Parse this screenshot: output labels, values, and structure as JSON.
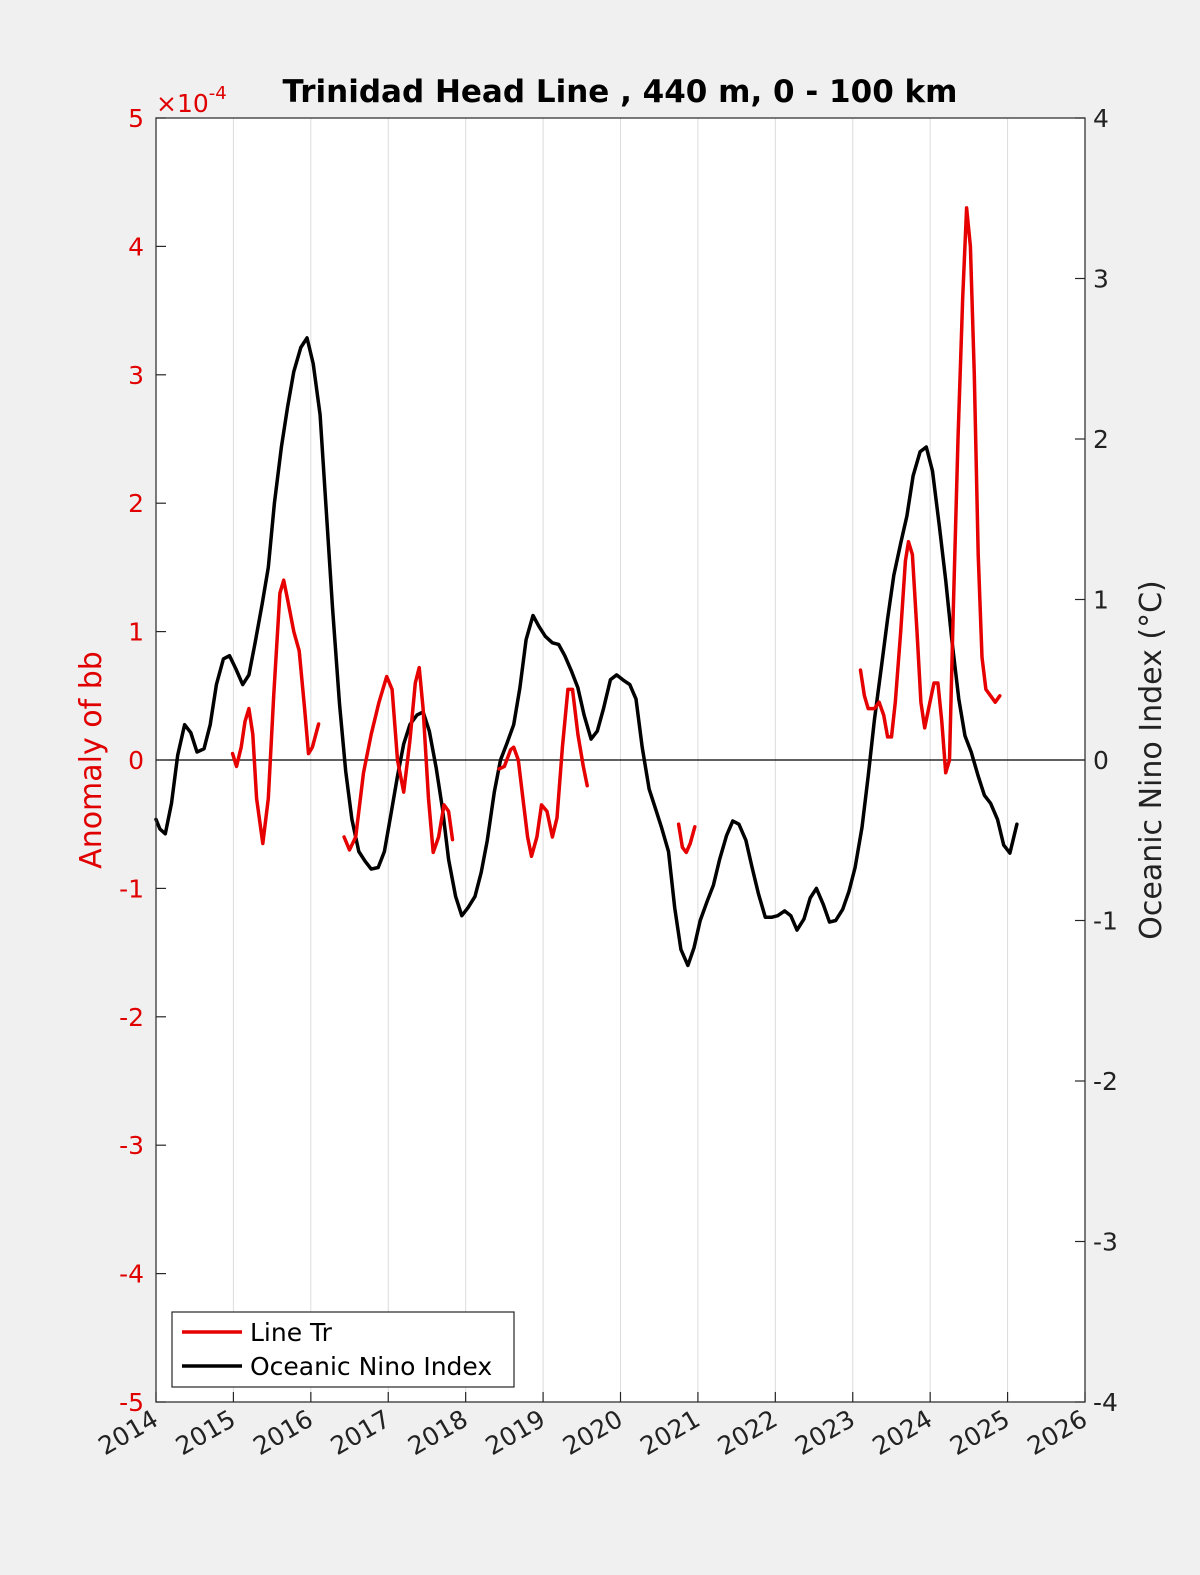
{
  "chart_data": {
    "type": "line",
    "title": "Trinidad Head Line , 440 m, 0 - 100 km",
    "ylabel_left": "Anomaly of bb",
    "ylabel_right": "Oceanic Nino Index (°C)",
    "left_exponent_base": "×10",
    "left_exponent_power": "-4",
    "xlim": [
      2014,
      2026
    ],
    "ylim_left": [
      -5,
      5
    ],
    "ylim_right": [
      -4,
      4
    ],
    "x_ticks": [
      2014,
      2015,
      2016,
      2017,
      2018,
      2019,
      2020,
      2021,
      2022,
      2023,
      2024,
      2025,
      2026
    ],
    "x_tick_labels": [
      "2014",
      "2015",
      "2016",
      "2017",
      "2018",
      "2019",
      "2020",
      "2021",
      "2022",
      "2023",
      "2024",
      "2025",
      "2026"
    ],
    "y_left_ticks": [
      -5,
      -4,
      -3,
      -2,
      -1,
      0,
      1,
      2,
      3,
      4,
      5
    ],
    "y_left_tick_labels": [
      "-5",
      "-4",
      "-3",
      "-2",
      "-1",
      "0",
      "1",
      "2",
      "3",
      "4",
      "5"
    ],
    "y_right_ticks": [
      -4,
      -3,
      -2,
      -1,
      0,
      1,
      2,
      3,
      4
    ],
    "y_right_tick_labels": [
      "-4",
      "-3",
      "-2",
      "-1",
      "0",
      "1",
      "2",
      "3",
      "4"
    ],
    "grid": "vertical",
    "legend_position": "bottom-left",
    "colors": {
      "line_tr": "#e60000",
      "oni": "#000000",
      "left_axis": "#e00000",
      "right_axis": "#222222"
    },
    "series": [
      {
        "name": "Line Tr",
        "axis": "left",
        "segments": [
          [
            [
              2014.99,
              0.05
            ],
            [
              2015.04,
              -0.05
            ],
            [
              2015.1,
              0.1
            ],
            [
              2015.15,
              0.3
            ],
            [
              2015.2,
              0.4
            ],
            [
              2015.25,
              0.2
            ],
            [
              2015.3,
              -0.3
            ],
            [
              2015.38,
              -0.65
            ],
            [
              2015.45,
              -0.3
            ],
            [
              2015.52,
              0.5
            ],
            [
              2015.6,
              1.3
            ],
            [
              2015.65,
              1.4
            ],
            [
              2015.7,
              1.25
            ],
            [
              2015.78,
              1.0
            ],
            [
              2015.85,
              0.85
            ],
            [
              2015.92,
              0.4
            ],
            [
              2015.97,
              0.05
            ],
            [
              2016.02,
              0.1
            ],
            [
              2016.1,
              0.28
            ]
          ],
          [
            [
              2016.43,
              -0.6
            ],
            [
              2016.5,
              -0.7
            ],
            [
              2016.58,
              -0.6
            ],
            [
              2016.68,
              -0.1
            ],
            [
              2016.78,
              0.2
            ],
            [
              2016.88,
              0.45
            ],
            [
              2016.98,
              0.65
            ],
            [
              2017.05,
              0.55
            ],
            [
              2017.12,
              0.0
            ],
            [
              2017.2,
              -0.25
            ],
            [
              2017.28,
              0.15
            ],
            [
              2017.35,
              0.6
            ],
            [
              2017.4,
              0.72
            ],
            [
              2017.45,
              0.4
            ],
            [
              2017.52,
              -0.3
            ],
            [
              2017.58,
              -0.72
            ],
            [
              2017.65,
              -0.6
            ],
            [
              2017.72,
              -0.35
            ],
            [
              2017.78,
              -0.4
            ],
            [
              2017.83,
              -0.62
            ]
          ],
          [
            [
              2018.43,
              -0.07
            ],
            [
              2018.5,
              -0.05
            ],
            [
              2018.58,
              0.08
            ],
            [
              2018.62,
              0.1
            ],
            [
              2018.68,
              0.0
            ],
            [
              2018.75,
              -0.35
            ],
            [
              2018.8,
              -0.6
            ],
            [
              2018.85,
              -0.75
            ],
            [
              2018.92,
              -0.6
            ],
            [
              2018.98,
              -0.35
            ],
            [
              2019.05,
              -0.4
            ],
            [
              2019.12,
              -0.6
            ],
            [
              2019.18,
              -0.45
            ],
            [
              2019.25,
              0.1
            ],
            [
              2019.32,
              0.55
            ],
            [
              2019.38,
              0.55
            ],
            [
              2019.45,
              0.2
            ],
            [
              2019.52,
              -0.05
            ],
            [
              2019.57,
              -0.2
            ]
          ],
          [
            [
              2020.75,
              -0.5
            ],
            [
              2020.8,
              -0.68
            ],
            [
              2020.85,
              -0.72
            ],
            [
              2020.9,
              -0.65
            ],
            [
              2020.96,
              -0.52
            ]
          ],
          [
            [
              2023.1,
              0.7
            ],
            [
              2023.15,
              0.5
            ],
            [
              2023.2,
              0.4
            ],
            [
              2023.28,
              0.4
            ],
            [
              2023.34,
              0.45
            ],
            [
              2023.4,
              0.35
            ],
            [
              2023.45,
              0.18
            ],
            [
              2023.5,
              0.18
            ],
            [
              2023.55,
              0.45
            ],
            [
              2023.62,
              1.0
            ],
            [
              2023.68,
              1.55
            ],
            [
              2023.72,
              1.7
            ],
            [
              2023.77,
              1.6
            ],
            [
              2023.83,
              1.0
            ],
            [
              2023.88,
              0.45
            ],
            [
              2023.93,
              0.25
            ],
            [
              2023.98,
              0.4
            ],
            [
              2024.05,
              0.6
            ],
            [
              2024.1,
              0.6
            ],
            [
              2024.15,
              0.3
            ],
            [
              2024.2,
              -0.1
            ],
            [
              2024.25,
              0.0
            ],
            [
              2024.3,
              1.2
            ],
            [
              2024.36,
              2.5
            ],
            [
              2024.42,
              3.6
            ],
            [
              2024.47,
              4.3
            ],
            [
              2024.52,
              4.0
            ],
            [
              2024.57,
              3.0
            ],
            [
              2024.62,
              1.6
            ],
            [
              2024.67,
              0.8
            ],
            [
              2024.72,
              0.55
            ],
            [
              2024.78,
              0.5
            ],
            [
              2024.84,
              0.45
            ],
            [
              2024.9,
              0.5
            ]
          ]
        ]
      },
      {
        "name": "Oceanic Nino Index",
        "axis": "right",
        "segments": [
          [
            [
              2014.0,
              -0.37
            ],
            [
              2014.05,
              -0.43
            ],
            [
              2014.12,
              -0.46
            ],
            [
              2014.2,
              -0.27
            ],
            [
              2014.28,
              0.03
            ],
            [
              2014.37,
              0.22
            ],
            [
              2014.45,
              0.17
            ],
            [
              2014.53,
              0.05
            ],
            [
              2014.62,
              0.07
            ],
            [
              2014.7,
              0.22
            ],
            [
              2014.78,
              0.47
            ],
            [
              2014.87,
              0.63
            ],
            [
              2014.95,
              0.65
            ],
            [
              2015.03,
              0.57
            ],
            [
              2015.12,
              0.47
            ],
            [
              2015.2,
              0.53
            ],
            [
              2015.28,
              0.73
            ],
            [
              2015.37,
              0.97
            ],
            [
              2015.45,
              1.2
            ],
            [
              2015.53,
              1.6
            ],
            [
              2015.62,
              1.95
            ],
            [
              2015.7,
              2.2
            ],
            [
              2015.78,
              2.42
            ],
            [
              2015.87,
              2.57
            ],
            [
              2015.95,
              2.63
            ],
            [
              2016.03,
              2.47
            ],
            [
              2016.12,
              2.15
            ],
            [
              2016.2,
              1.55
            ],
            [
              2016.28,
              0.95
            ],
            [
              2016.37,
              0.35
            ],
            [
              2016.45,
              -0.07
            ],
            [
              2016.53,
              -0.37
            ],
            [
              2016.62,
              -0.57
            ],
            [
              2016.7,
              -0.63
            ],
            [
              2016.78,
              -0.68
            ],
            [
              2016.87,
              -0.67
            ],
            [
              2016.95,
              -0.57
            ],
            [
              2017.03,
              -0.35
            ],
            [
              2017.12,
              -0.1
            ],
            [
              2017.2,
              0.1
            ],
            [
              2017.28,
              0.22
            ],
            [
              2017.37,
              0.28
            ],
            [
              2017.45,
              0.3
            ],
            [
              2017.53,
              0.18
            ],
            [
              2017.62,
              -0.05
            ],
            [
              2017.7,
              -0.3
            ],
            [
              2017.78,
              -0.62
            ],
            [
              2017.87,
              -0.85
            ],
            [
              2017.95,
              -0.97
            ],
            [
              2018.03,
              -0.92
            ],
            [
              2018.12,
              -0.85
            ],
            [
              2018.2,
              -0.7
            ],
            [
              2018.28,
              -0.5
            ],
            [
              2018.37,
              -0.2
            ],
            [
              2018.45,
              0.0
            ],
            [
              2018.53,
              0.1
            ],
            [
              2018.62,
              0.22
            ],
            [
              2018.7,
              0.45
            ],
            [
              2018.78,
              0.75
            ],
            [
              2018.87,
              0.9
            ],
            [
              2018.95,
              0.83
            ],
            [
              2019.03,
              0.77
            ],
            [
              2019.12,
              0.73
            ],
            [
              2019.2,
              0.72
            ],
            [
              2019.28,
              0.65
            ],
            [
              2019.37,
              0.55
            ],
            [
              2019.45,
              0.45
            ],
            [
              2019.53,
              0.28
            ],
            [
              2019.62,
              0.13
            ],
            [
              2019.7,
              0.18
            ],
            [
              2019.78,
              0.32
            ],
            [
              2019.87,
              0.5
            ],
            [
              2019.95,
              0.53
            ],
            [
              2020.03,
              0.5
            ],
            [
              2020.12,
              0.47
            ],
            [
              2020.2,
              0.38
            ],
            [
              2020.28,
              0.08
            ],
            [
              2020.37,
              -0.18
            ],
            [
              2020.45,
              -0.3
            ],
            [
              2020.53,
              -0.42
            ],
            [
              2020.62,
              -0.57
            ],
            [
              2020.7,
              -0.92
            ],
            [
              2020.78,
              -1.18
            ],
            [
              2020.87,
              -1.28
            ],
            [
              2020.95,
              -1.17
            ],
            [
              2021.03,
              -1.0
            ],
            [
              2021.12,
              -0.88
            ],
            [
              2021.2,
              -0.78
            ],
            [
              2021.28,
              -0.62
            ],
            [
              2021.37,
              -0.47
            ],
            [
              2021.45,
              -0.38
            ],
            [
              2021.53,
              -0.4
            ],
            [
              2021.62,
              -0.5
            ],
            [
              2021.7,
              -0.67
            ],
            [
              2021.78,
              -0.83
            ],
            [
              2021.87,
              -0.98
            ],
            [
              2021.95,
              -0.98
            ],
            [
              2022.03,
              -0.97
            ],
            [
              2022.12,
              -0.94
            ],
            [
              2022.2,
              -0.97
            ],
            [
              2022.28,
              -1.06
            ],
            [
              2022.37,
              -0.99
            ],
            [
              2022.45,
              -0.86
            ],
            [
              2022.53,
              -0.8
            ],
            [
              2022.62,
              -0.9
            ],
            [
              2022.7,
              -1.01
            ],
            [
              2022.78,
              -1.0
            ],
            [
              2022.87,
              -0.93
            ],
            [
              2022.95,
              -0.82
            ],
            [
              2023.03,
              -0.67
            ],
            [
              2023.12,
              -0.42
            ],
            [
              2023.2,
              -0.1
            ],
            [
              2023.28,
              0.25
            ],
            [
              2023.37,
              0.58
            ],
            [
              2023.45,
              0.88
            ],
            [
              2023.53,
              1.15
            ],
            [
              2023.62,
              1.35
            ],
            [
              2023.7,
              1.52
            ],
            [
              2023.78,
              1.77
            ],
            [
              2023.87,
              1.92
            ],
            [
              2023.95,
              1.95
            ],
            [
              2024.03,
              1.8
            ],
            [
              2024.12,
              1.45
            ],
            [
              2024.2,
              1.12
            ],
            [
              2024.28,
              0.75
            ],
            [
              2024.37,
              0.38
            ],
            [
              2024.45,
              0.15
            ],
            [
              2024.53,
              0.05
            ],
            [
              2024.62,
              -0.1
            ],
            [
              2024.7,
              -0.22
            ],
            [
              2024.78,
              -0.27
            ],
            [
              2024.87,
              -0.37
            ],
            [
              2024.95,
              -0.53
            ],
            [
              2025.03,
              -0.58
            ],
            [
              2025.12,
              -0.4
            ]
          ]
        ]
      }
    ]
  }
}
